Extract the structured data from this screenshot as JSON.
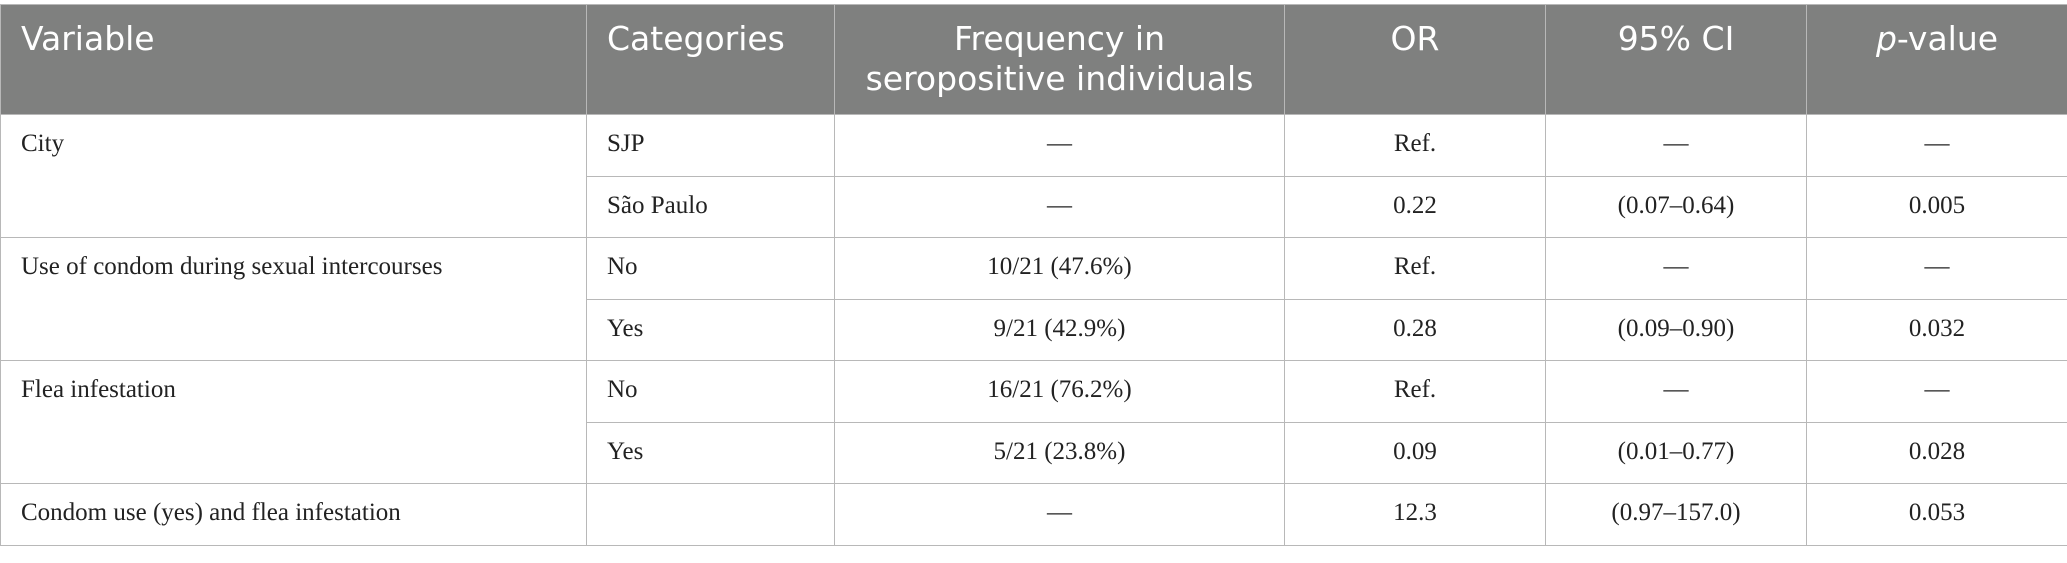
{
  "table": {
    "headers": {
      "variable": "Variable",
      "categories": "Categories",
      "frequency_line1": "Frequency in",
      "frequency_line2": "seropositive individuals",
      "or": "OR",
      "ci": "95% CI",
      "pvalue_italic": "p",
      "pvalue_rest": "-value"
    },
    "groups": [
      {
        "variable": "City",
        "rows": [
          {
            "category": "SJP",
            "frequency": "—",
            "or": "Ref.",
            "ci": "—",
            "p": "—"
          },
          {
            "category": "São Paulo",
            "frequency": "—",
            "or": "0.22",
            "ci": "(0.07–0.64)",
            "p": "0.005"
          }
        ]
      },
      {
        "variable": "Use of condom during sexual intercourses",
        "rows": [
          {
            "category": "No",
            "frequency": "10/21 (47.6%)",
            "or": "Ref.",
            "ci": "—",
            "p": "—"
          },
          {
            "category": "Yes",
            "frequency": "9/21 (42.9%)",
            "or": "0.28",
            "ci": "(0.09–0.90)",
            "p": "0.032"
          }
        ]
      },
      {
        "variable": "Flea infestation",
        "rows": [
          {
            "category": "No",
            "frequency": "16/21 (76.2%)",
            "or": "Ref.",
            "ci": "—",
            "p": "—"
          },
          {
            "category": "Yes",
            "frequency": "5/21 (23.8%)",
            "or": "0.09",
            "ci": "(0.01–0.77)",
            "p": "0.028"
          }
        ]
      },
      {
        "variable": "Condom use (yes) and flea infestation",
        "rows": [
          {
            "category": "",
            "frequency": "—",
            "or": "12.3",
            "ci": "(0.97–157.0)",
            "p": "0.053"
          }
        ]
      }
    ]
  }
}
